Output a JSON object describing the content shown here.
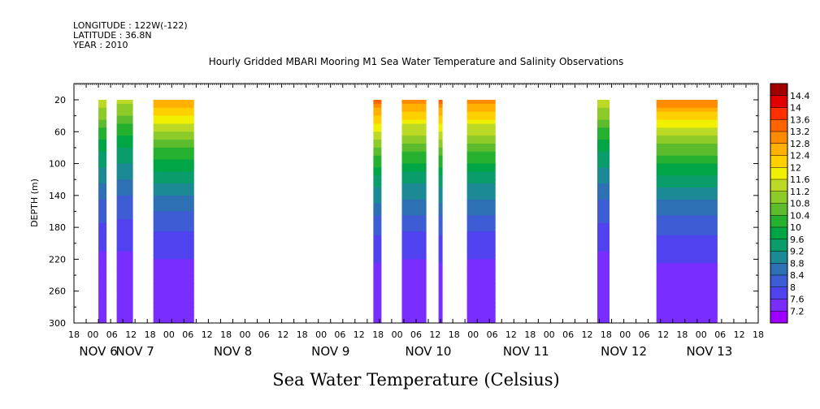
{
  "header": {
    "lines": [
      "LONGITUDE : 122W(-122)",
      "LATITUDE : 36.8N",
      "YEAR : 2010"
    ],
    "title": "Hourly Gridded MBARI Mooring M1 Sea Water Temperature and Salinity Observations"
  },
  "footer": {
    "caption": "Sea Water Temperature (Celsius)"
  },
  "chart_data": {
    "type": "heatmap",
    "variable": "Sea Water Temperature",
    "units": "Celsius",
    "ylabel": "DEPTH (m)",
    "xlabel": "",
    "x_hour_ticks": [
      "18",
      "00",
      "06",
      "12",
      "18",
      "00",
      "06",
      "12",
      "18",
      "00",
      "06",
      "12",
      "18",
      "00",
      "06",
      "12",
      "18",
      "00",
      "06",
      "12",
      "18",
      "00",
      "06",
      "12",
      "18",
      "00",
      "06",
      "12",
      "18",
      "00",
      "06",
      "12",
      "18",
      "00",
      "06",
      "12",
      "18"
    ],
    "x_day_labels": [
      "NOV 6",
      "NOV 7",
      "NOV 8",
      "NOV 9",
      "NOV 10",
      "NOV 11",
      "NOV 12",
      "NOV 13"
    ],
    "day_label_hours": [
      24,
      42,
      90,
      138,
      186,
      234,
      282,
      324
    ],
    "x_range_hours": [
      12,
      348
    ],
    "y_ticks": [
      "20",
      "60",
      "100",
      "140",
      "180",
      "220",
      "260",
      "300"
    ],
    "ylim": [
      300,
      20
    ],
    "color_levels": [
      "7.2",
      "7.6",
      "8",
      "8.4",
      "8.8",
      "9.2",
      "9.6",
      "10",
      "10.4",
      "10.8",
      "11.2",
      "11.6",
      "12",
      "12.4",
      "12.8",
      "13.2",
      "13.6",
      "14",
      "14.4"
    ],
    "colors": [
      "#9e00ff",
      "#7a2dff",
      "#5042ef",
      "#3e5cd4",
      "#2e70b4",
      "#1c8a94",
      "#0a9c6a",
      "#00a545",
      "#25b030",
      "#5cbc2d",
      "#8dcb28",
      "#bcd925",
      "#f0f000",
      "#ffd000",
      "#ffb000",
      "#ff8c00",
      "#ff6400",
      "#ff3000",
      "#e00000",
      "#a00000"
    ],
    "segments": [
      {
        "start": 24,
        "end": 28,
        "t_surface": 11.6
      },
      {
        "start": 33,
        "end": 41,
        "t_surface": 11.4
      },
      {
        "start": 51,
        "end": 71,
        "t_surface": 12.8
      },
      {
        "start": 159,
        "end": 163,
        "t_surface": 13.4
      },
      {
        "start": 173,
        "end": 185,
        "t_surface": 13.0
      },
      {
        "start": 191,
        "end": 193,
        "t_surface": 13.4
      },
      {
        "start": 205,
        "end": 219,
        "t_surface": 13.0
      },
      {
        "start": 269,
        "end": 275,
        "t_surface": 11.6
      },
      {
        "start": 298,
        "end": 328,
        "t_surface": 13.2
      }
    ]
  }
}
